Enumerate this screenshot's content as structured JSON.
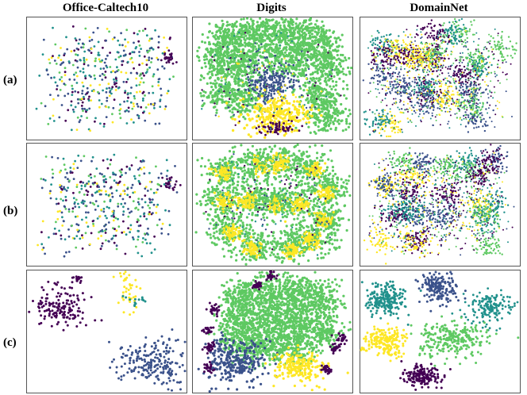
{
  "columns": [
    "Office-Caltech10",
    "Digits",
    "DomainNet"
  ],
  "rows": [
    "(a)",
    "(b)",
    "(c)"
  ],
  "palette": {
    "purple": "#440154",
    "blue": "#3b528b",
    "teal": "#21918c",
    "green": "#5ec962",
    "yellow": "#fde725",
    "light-green": "#7ad151",
    "frame": "#555555"
  },
  "chart_data": {
    "type": "scatter",
    "description_of_marks": "t-SNE feature embeddings colored by domain/class",
    "grid": false,
    "legend": "none",
    "panels": [
      {
        "row": "(a)",
        "column": "Office-Caltech10",
        "pattern": "scattered-mixed"
      },
      {
        "row": "(a)",
        "column": "Digits",
        "pattern": "green-dominant-with-yellow-bottom"
      },
      {
        "row": "(a)",
        "column": "DomainNet",
        "pattern": "dense-mixed-clusters"
      },
      {
        "row": "(b)",
        "column": "Office-Caltech10",
        "pattern": "scattered-mixed"
      },
      {
        "row": "(b)",
        "column": "Digits",
        "pattern": "green-yellow-mixed-clusters"
      },
      {
        "row": "(b)",
        "column": "DomainNet",
        "pattern": "dense-mixed-clusters"
      },
      {
        "row": "(c)",
        "column": "Office-Caltech10",
        "pattern": "separated-domain-clusters"
      },
      {
        "row": "(c)",
        "column": "Digits",
        "pattern": "separated-domain-clusters"
      },
      {
        "row": "(c)",
        "column": "DomainNet",
        "pattern": "separated-domain-clusters"
      }
    ]
  }
}
